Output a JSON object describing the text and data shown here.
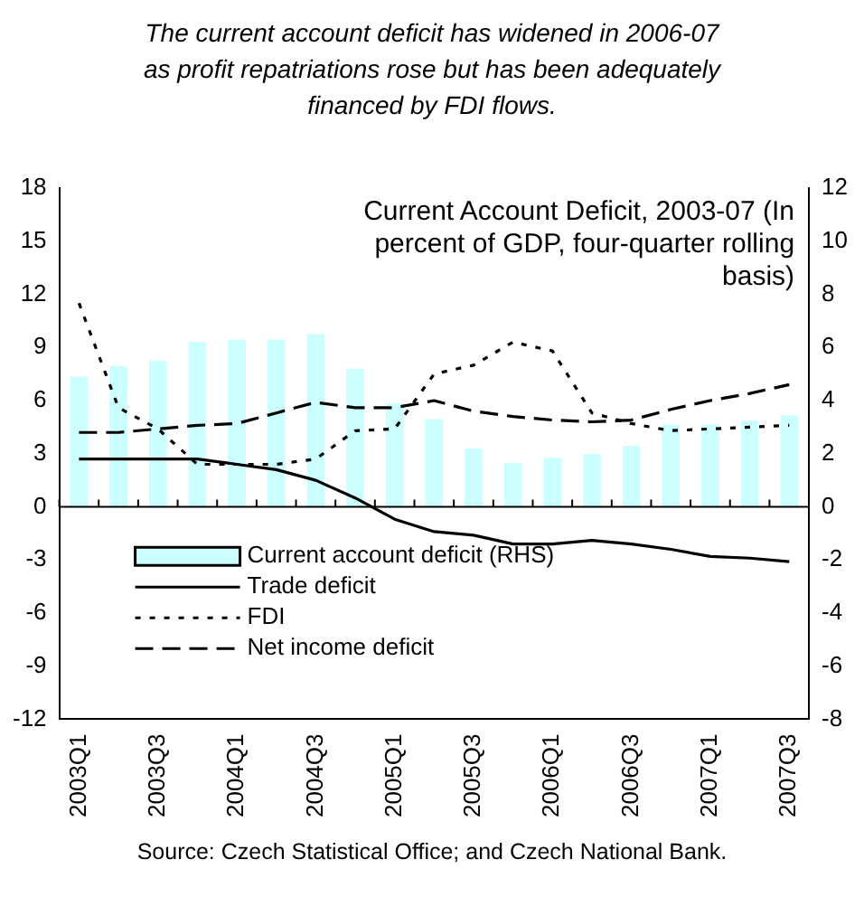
{
  "chart_data": {
    "type": "bar",
    "title": "The current account deficit has widened in 2006-07 as profit repatriations rose but has been adequately financed by FDI flows.",
    "categories": [
      "2003Q1",
      null,
      "2003Q3",
      null,
      "2004Q1",
      null,
      "2004Q3",
      null,
      "2005Q1",
      null,
      "2005Q3",
      null,
      "2006Q1",
      null,
      "2006Q3",
      null,
      "2007Q1",
      null,
      "2007Q3"
    ],
    "series": [
      {
        "name": "Current account deficit (RHS)",
        "axis": "y2",
        "color": "#ccffff",
        "values": [
          4.9,
          5.3,
          5.5,
          6.2,
          6.3,
          6.3,
          6.5,
          5.2,
          3.9,
          3.3,
          2.2,
          1.65,
          1.85,
          2.0,
          2.3,
          3.1,
          3.1,
          3.25,
          3.45
        ]
      },
      {
        "name": "Trade deficit",
        "type": "line",
        "line_style": "solid",
        "color": "#000000",
        "values": [
          2.7,
          2.7,
          2.7,
          2.7,
          2.4,
          2.1,
          1.5,
          0.5,
          -0.7,
          -1.4,
          -1.6,
          -2.1,
          -2.1,
          -1.9,
          -2.1,
          -2.4,
          -2.8,
          -2.9,
          -3.1
        ]
      },
      {
        "name": "FDI",
        "type": "line",
        "line_style": "dotted",
        "color": "#000000",
        "values": [
          11.5,
          5.6,
          4.4,
          2.4,
          2.4,
          2.4,
          2.7,
          4.3,
          4.4,
          7.5,
          8.0,
          9.3,
          8.8,
          5.3,
          4.7,
          4.3,
          4.4,
          4.5,
          4.6
        ]
      },
      {
        "name": "Net income deficit",
        "type": "line",
        "line_style": "dashed",
        "color": "#000000",
        "values": [
          4.2,
          4.2,
          4.4,
          4.6,
          4.7,
          5.3,
          5.9,
          5.6,
          5.6,
          6.0,
          5.4,
          5.1,
          4.9,
          4.8,
          4.9,
          5.5,
          6.0,
          6.4,
          6.9
        ]
      }
    ],
    "ylim": [
      -12,
      18
    ],
    "yticks": [
      -12,
      -9,
      -6,
      -3,
      0,
      3,
      6,
      9,
      12,
      15,
      18
    ],
    "y2lim": [
      -8,
      12
    ],
    "y2ticks": [
      -8,
      -6,
      -4,
      -2,
      0,
      2,
      4,
      6,
      8,
      10,
      12
    ],
    "ref_lines": [
      {
        "axis": "y",
        "value": 0,
        "color": "#000000"
      }
    ],
    "legend": "bottom left",
    "marker": "none",
    "annotations": [
      {
        "text": "Current Account Deficit, 2003-07 (In percent of GDP, four-quarter rolling basis)"
      },
      "Source: Czech Statistical Office; and Czech National Bank."
    ]
  }
}
